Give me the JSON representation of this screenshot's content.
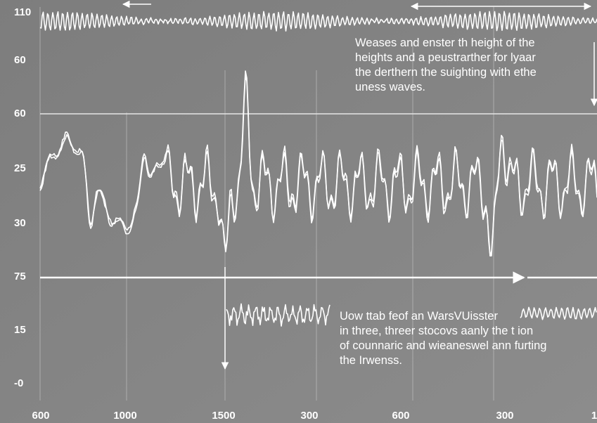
{
  "y_axis_labels": [
    "110",
    "60",
    "60",
    "25",
    "30",
    "75",
    "15",
    "-0"
  ],
  "x_axis_labels": [
    "600",
    "1000",
    "1500",
    "300",
    "600",
    "300",
    "1"
  ],
  "annotations": [
    {
      "lines": [
        "Weases and enster th height of the",
        "heights and a peustrarther for lyaar",
        "the derthern the suighting with ethe",
        "uness waves."
      ]
    },
    {
      "lines": [
        "Uow ttab feof an WarsVUisster",
        "in three, threer stocovs aanly the t ion",
        "of counnaric and wieaneswel ann furting",
        "the Irwenss."
      ]
    }
  ]
}
